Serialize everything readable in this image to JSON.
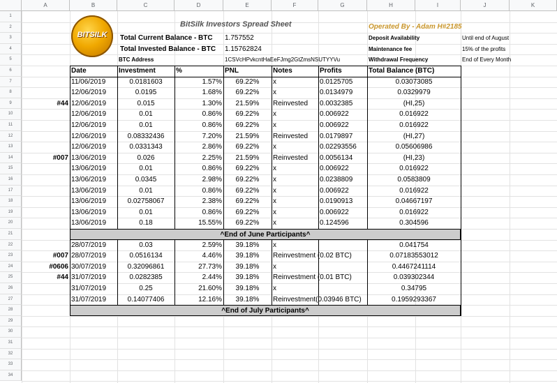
{
  "columns": [
    "A",
    "B",
    "C",
    "D",
    "E",
    "F",
    "G",
    "H",
    "I",
    "J",
    "K"
  ],
  "row_numbers": [
    "1",
    "2",
    "3",
    "4",
    "5",
    "6",
    "7",
    "8",
    "9",
    "10",
    "11",
    "12",
    "13",
    "14",
    "15",
    "16",
    "17",
    "18",
    "19",
    "20",
    "21",
    "22",
    "23",
    "24",
    "25",
    "26",
    "27",
    "28",
    "29",
    "30",
    "31",
    "32",
    "33",
    "34"
  ],
  "logo": {
    "text": "BITSILK"
  },
  "title": "BitSilk Investors Spread Sheet",
  "operated_by": "Operated By - Adam H#2185",
  "balances": {
    "current_label": "Total Current Balance - BTC",
    "current_value": "1.757552",
    "invested_label": "Total Invested Balance - BTC",
    "invested_value": "1.15762824",
    "address_label": "BTC Address",
    "address_value": "1CSVcHPvkcntHaEeFJmg2GtZmsNSUTYYVu"
  },
  "info": [
    {
      "label": "Deposit Availability",
      "value": "Until end of August"
    },
    {
      "label": "Maintenance fee",
      "value": "15% of the profits"
    },
    {
      "label": "Withdrawal Frequency",
      "value": "End of Every Month"
    }
  ],
  "headers": {
    "date": "Date",
    "investment": "Investment",
    "pct": "%",
    "pnl": "PNL",
    "notes": "Notes",
    "profits": "Profits",
    "total": "Total Balance (BTC)"
  },
  "june_rows": [
    {
      "tag": "",
      "date": "11/06/2019",
      "inv": "0.0181603",
      "pct": "1.57%",
      "pnl": "69.22%",
      "notes": "x",
      "profit": "0.0125705",
      "total": "0.03073085"
    },
    {
      "tag": "",
      "date": "12/06/2019",
      "inv": "0.0195",
      "pct": "1.68%",
      "pnl": "69.22%",
      "notes": "x",
      "profit": "0.0134979",
      "total": "0.0329979"
    },
    {
      "tag": "#44",
      "date": "12/06/2019",
      "inv": "0.015",
      "pct": "1.30%",
      "pnl": "21.59%",
      "notes": "Reinvested",
      "profit": "0.0032385",
      "total": "(HI,25)"
    },
    {
      "tag": "",
      "date": "12/06/2019",
      "inv": "0.01",
      "pct": "0.86%",
      "pnl": "69.22%",
      "notes": "x",
      "profit": "0.006922",
      "total": "0.016922"
    },
    {
      "tag": "",
      "date": "12/06/2019",
      "inv": "0.01",
      "pct": "0.86%",
      "pnl": "69.22%",
      "notes": "x",
      "profit": "0.006922",
      "total": "0.016922"
    },
    {
      "tag": "",
      "date": "12/06/2019",
      "inv": "0.08332436",
      "pct": "7.20%",
      "pnl": "21.59%",
      "notes": "Reinvested",
      "profit": "0.0179897",
      "total": "(HI,27)"
    },
    {
      "tag": "",
      "date": "12/06/2019",
      "inv": "0.0331343",
      "pct": "2.86%",
      "pnl": "69.22%",
      "notes": "x",
      "profit": "0.02293556",
      "total": "0.05606986"
    },
    {
      "tag": "#007",
      "date": "13/06/2019",
      "inv": "0.026",
      "pct": "2.25%",
      "pnl": "21.59%",
      "notes": "Reinvested",
      "profit": "0.0056134",
      "total": "(HI,23)"
    },
    {
      "tag": "",
      "date": "13/06/2019",
      "inv": "0.01",
      "pct": "0.86%",
      "pnl": "69.22%",
      "notes": "x",
      "profit": "0.006922",
      "total": "0.016922"
    },
    {
      "tag": "",
      "date": "13/06/2019",
      "inv": "0.0345",
      "pct": "2.98%",
      "pnl": "69.22%",
      "notes": "x",
      "profit": "0.0238809",
      "total": "0.0583809"
    },
    {
      "tag": "",
      "date": "13/06/2019",
      "inv": "0.01",
      "pct": "0.86%",
      "pnl": "69.22%",
      "notes": "x",
      "profit": "0.006922",
      "total": "0.016922"
    },
    {
      "tag": "",
      "date": "13/06/2019",
      "inv": "0.02758067",
      "pct": "2.38%",
      "pnl": "69.22%",
      "notes": "x",
      "profit": "0.0190913",
      "total": "0.04667197"
    },
    {
      "tag": "",
      "date": "13/06/2019",
      "inv": "0.01",
      "pct": "0.86%",
      "pnl": "69.22%",
      "notes": "x",
      "profit": "0.006922",
      "total": "0.016922"
    },
    {
      "tag": "",
      "date": "13/06/2019",
      "inv": "0.18",
      "pct": "15.55%",
      "pnl": "69.22%",
      "notes": "x",
      "profit": "0.124596",
      "total": "0.304596"
    }
  ],
  "june_banner": "^End of June Participants^",
  "july_rows": [
    {
      "tag": "",
      "date": "28/07/2019",
      "inv": "0.03",
      "pct": "2.59%",
      "pnl": "39.18%",
      "notes": "x",
      "total": "0.041754"
    },
    {
      "tag": "#007",
      "date": "28/07/2019",
      "inv": "0.0516134",
      "pct": "4.46%",
      "pnl": "39.18%",
      "notes": "Reinvestment (0.02 BTC)",
      "total": "0.07183553012"
    },
    {
      "tag": "#0606",
      "date": "30/07/2019",
      "inv": "0.32096861",
      "pct": "27.73%",
      "pnl": "39.18%",
      "notes": "x",
      "total": "0.4467241114"
    },
    {
      "tag": "#44",
      "date": "31/07/2019",
      "inv": "0.0282385",
      "pct": "2.44%",
      "pnl": "39.18%",
      "notes": "Reinvestment (0.01 BTC)",
      "total": "0.039302344"
    },
    {
      "tag": "",
      "date": "31/07/2019",
      "inv": "0.25",
      "pct": "21.60%",
      "pnl": "39.18%",
      "notes": "x",
      "total": "0.34795"
    },
    {
      "tag": "",
      "date": "31/07/2019",
      "inv": "0.14077406",
      "pct": "12.16%",
      "pnl": "39.18%",
      "notes": "Reinvestment(0.03946 BTC)",
      "total": "0.1959293367"
    }
  ],
  "july_banner": "^End of July Participants^"
}
